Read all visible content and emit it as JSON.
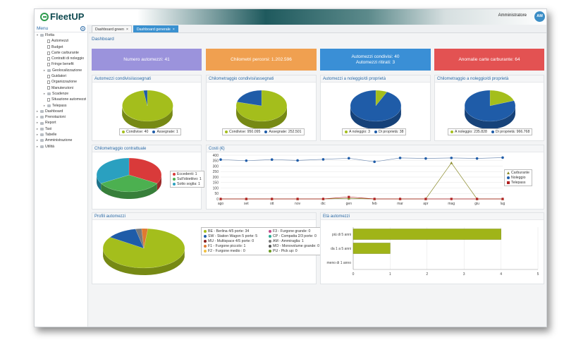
{
  "app": {
    "logo_text": "FleetUP",
    "user_name": "Amministratore",
    "user_initials": "AM"
  },
  "sidebar": {
    "title": "Menu",
    "items": [
      {
        "label": "Flotta",
        "level": 0,
        "toggle": "▾",
        "icon": "folder"
      },
      {
        "label": "Automezzi",
        "level": 1,
        "icon": "doc"
      },
      {
        "label": "Budget",
        "level": 1,
        "icon": "doc"
      },
      {
        "label": "Carte carburante",
        "level": 1,
        "icon": "doc"
      },
      {
        "label": "Contratti di noleggio",
        "level": 1,
        "icon": "doc"
      },
      {
        "label": "Fringe benefit",
        "level": 1,
        "icon": "doc"
      },
      {
        "label": "Geolocalizzazione",
        "level": 1,
        "toggle": "▸",
        "icon": "folder"
      },
      {
        "label": "Guidatori",
        "level": 1,
        "icon": "doc"
      },
      {
        "label": "Organizzazione",
        "level": 1,
        "icon": "doc"
      },
      {
        "label": "Manutenzioni",
        "level": 1,
        "icon": "doc"
      },
      {
        "label": "Scadenze",
        "level": 1,
        "toggle": "▸",
        "icon": "folder"
      },
      {
        "label": "Situazione automezzi",
        "level": 1,
        "icon": "doc"
      },
      {
        "label": "Telepass",
        "level": 1,
        "toggle": "▸",
        "icon": "folder"
      },
      {
        "label": "Dashboard",
        "level": 0,
        "toggle": "▸",
        "icon": "folder"
      },
      {
        "label": "Prenotazioni",
        "level": 0,
        "toggle": "▸",
        "icon": "folder"
      },
      {
        "label": "Report",
        "level": 0,
        "toggle": "▸",
        "icon": "folder"
      },
      {
        "label": "Taxi",
        "level": 0,
        "toggle": "▸",
        "icon": "folder"
      },
      {
        "label": "Tabelle",
        "level": 0,
        "toggle": "▸",
        "icon": "folder"
      },
      {
        "label": "Amministrazione",
        "level": 0,
        "toggle": "▸",
        "icon": "folder"
      },
      {
        "label": "Utilità",
        "level": 0,
        "toggle": "▸",
        "icon": "folder"
      }
    ]
  },
  "tabs": [
    {
      "label": "Dashboard green",
      "close": "×",
      "active": false
    },
    {
      "label": "Dashboard generale",
      "close": "×",
      "active": true
    }
  ],
  "page_title": "Dashboard",
  "kpis": [
    {
      "line1": "Numero automezzi: 41",
      "line2": "",
      "color": "#9b93dc"
    },
    {
      "line1": "Chilometri percorsi: 1.202.596",
      "line2": "",
      "color": "#f0a050"
    },
    {
      "line1": "Automezzi condivisi: 40",
      "line2": "Automezzi ritirati: 3",
      "color": "#3a8fd6"
    },
    {
      "line1": "Anomalie carte carburante: 64",
      "line2": "",
      "color": "#e35252"
    }
  ],
  "colors": {
    "green": "#a4be1c",
    "blue": "#1f5ca8",
    "red": "#d93a3a",
    "olive": "#8a8a2a"
  },
  "pies": [
    {
      "title": "Automezzi condivisi/assegnati",
      "legend": [
        "Condivise: 40",
        "Assegnate: 1"
      ]
    },
    {
      "title": "Chilometraggio condivisi/assegnati",
      "legend": [
        "Condivise: 950.095",
        "Assegnate: 252.501"
      ]
    },
    {
      "title": "Automezzi a noleggio/di proprietà",
      "legend": [
        "A noleggio: 3",
        "Di proprietà: 38"
      ]
    },
    {
      "title": "Chilometraggio a noleggio/di proprietà",
      "legend": [
        "A noleggio: 235.828",
        "Di proprietà: 966.768"
      ]
    }
  ],
  "chilometraggio_contrattuale": {
    "title": "Chilometraggio contrattuale",
    "legend": [
      "Eccedenti: 1",
      "Sull'obiettivo: 1",
      "Sotto soglia: 1"
    ]
  },
  "profili": {
    "title": "Profili automezzi",
    "legend": [
      {
        "label": "BE - Berlina 4/5 porte: 34",
        "color": "#a4be1c"
      },
      {
        "label": "F3 - Furgone grande: 0",
        "color": "#c04a8a"
      },
      {
        "label": "SW - Station Wagon 5 porte: 5",
        "color": "#1f5ca8"
      },
      {
        "label": "CP - Compatta 2/3 porte: 0",
        "color": "#2aa890"
      },
      {
        "label": "MU - Multispace 4/5 porte: 0",
        "color": "#8a2020"
      },
      {
        "label": "AM - Ammiraglia: 1",
        "color": "#7a7a7a"
      },
      {
        "label": "F1 - Furgone piccolo: 1",
        "color": "#e07a30"
      },
      {
        "label": "MO - Monovolume grande: 0",
        "color": "#555555"
      },
      {
        "label": "F2 - Furgone medio : 0",
        "color": "#f0c040"
      },
      {
        "label": "PU - Pick up: 0",
        "color": "#6a9a20"
      }
    ]
  },
  "chart_data": [
    {
      "type": "pie",
      "title": "Automezzi condivisi/assegnati",
      "categories": [
        "Condivise",
        "Assegnate"
      ],
      "values": [
        40,
        1
      ]
    },
    {
      "type": "pie",
      "title": "Chilometraggio condivisi/assegnati",
      "categories": [
        "Condivise",
        "Assegnate"
      ],
      "values": [
        950095,
        252501
      ]
    },
    {
      "type": "pie",
      "title": "Automezzi a noleggio/di proprietà",
      "categories": [
        "A noleggio",
        "Di proprietà"
      ],
      "values": [
        3,
        38
      ]
    },
    {
      "type": "pie",
      "title": "Chilometraggio a noleggio/di proprietà",
      "categories": [
        "A noleggio",
        "Di proprietà"
      ],
      "values": [
        235828,
        966768
      ]
    },
    {
      "type": "pie",
      "title": "Chilometraggio contrattuale",
      "categories": [
        "Eccedenti",
        "Sull'obiettivo",
        "Sotto soglia"
      ],
      "values": [
        1,
        1,
        1
      ]
    },
    {
      "type": "line",
      "title": "Costi (€)",
      "categories": [
        "ago",
        "set",
        "ott",
        "nov",
        "dic",
        "gen",
        "feb",
        "mar",
        "apr",
        "mag",
        "giu",
        "lug"
      ],
      "ylim": [
        0,
        400
      ],
      "yticks": [
        0,
        50,
        100,
        150,
        200,
        250,
        300,
        350,
        400
      ],
      "series": [
        {
          "name": "Carburante",
          "values": [
            0,
            0,
            0,
            0,
            0,
            5,
            0,
            0,
            0,
            330,
            0,
            0
          ]
        },
        {
          "name": "Noleggio",
          "values": [
            360,
            350,
            360,
            352,
            362,
            372,
            340,
            375,
            370,
            375,
            370,
            378
          ]
        },
        {
          "name": "Telepass",
          "values": [
            0,
            0,
            0,
            0,
            0,
            18,
            0,
            0,
            0,
            0,
            0,
            0
          ]
        }
      ],
      "legend_position": "right"
    },
    {
      "type": "pie",
      "title": "Profili automezzi",
      "categories": [
        "BE - Berlina 4/5 porte",
        "F3 - Furgone grande",
        "SW - Station Wagon 5 porte",
        "CP - Compatta 2/3 porte",
        "MU - Multispace 4/5 porte",
        "AM - Ammiraglia",
        "F1 - Furgone piccolo",
        "MO - Monovolume grande",
        "F2 - Furgone medio",
        "PU - Pick up"
      ],
      "values": [
        34,
        0,
        5,
        0,
        0,
        1,
        1,
        0,
        0,
        0
      ]
    },
    {
      "type": "bar",
      "title": "Età automezzi",
      "categories": [
        "più di 5 anni",
        "da 1 a 5 anni",
        "meno di 1 anno"
      ],
      "values": [
        4,
        1,
        0
      ],
      "xlim": [
        0,
        5
      ],
      "xticks": [
        0,
        1,
        2,
        3,
        4,
        5
      ],
      "orientation": "horizontal"
    }
  ]
}
